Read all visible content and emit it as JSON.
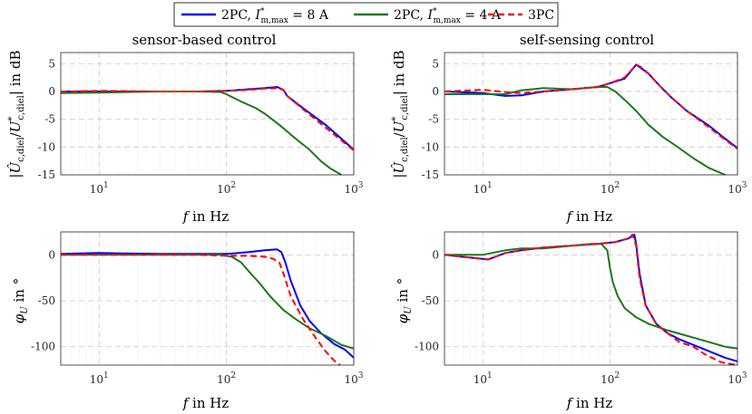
{
  "legend": {
    "entries": [
      {
        "name": "2PC, I*m,max = 8 A",
        "color": "#0000ff",
        "dash": "solid"
      },
      {
        "name": "2PC, I*m,max = 4 A",
        "color": "#1a7a1a",
        "dash": "solid"
      },
      {
        "name": "3PC",
        "color": "#ff0000",
        "dash": "dashed"
      }
    ]
  },
  "chart_data": [
    {
      "id": "mag-sensor",
      "type": "line",
      "title": "sensor-based control",
      "xlabel": "f in Hz",
      "ylabel": "|Ûc,diel / U*c,diel| in dB",
      "xscale": "log",
      "xlim": [
        5,
        1000
      ],
      "ylim": [
        -15,
        7
      ],
      "xticks": [
        10,
        100,
        1000
      ],
      "xticklabels": [
        "10^1",
        "10^2",
        "10^3"
      ],
      "yticks": [
        5,
        0,
        -5,
        -10,
        -15
      ],
      "series": [
        {
          "name": "2PC, I*m,max = 8 A",
          "x": [
            5,
            10,
            30,
            60,
            100,
            150,
            200,
            250,
            280,
            300,
            400,
            600,
            800,
            1000
          ],
          "y": [
            0,
            0,
            0,
            0,
            0.1,
            0.4,
            0.6,
            0.8,
            0.3,
            -0.8,
            -3,
            -6,
            -8.5,
            -10.5
          ]
        },
        {
          "name": "2PC, I*m,max = 4 A",
          "x": [
            5,
            10,
            30,
            60,
            90,
            100,
            130,
            170,
            200,
            260,
            350,
            450,
            550,
            650,
            800
          ],
          "y": [
            -0.3,
            -0.2,
            0,
            0,
            -0.1,
            -0.5,
            -1.8,
            -3,
            -4,
            -6,
            -8.5,
            -10.5,
            -12.5,
            -13.8,
            -15
          ]
        },
        {
          "name": "3PC",
          "x": [
            5,
            10,
            30,
            60,
            100,
            150,
            200,
            250,
            280,
            300,
            400,
            600,
            800,
            1000
          ],
          "y": [
            0,
            0.1,
            0,
            0,
            0.1,
            0.3,
            0.5,
            0.6,
            0.3,
            -0.8,
            -3.2,
            -6.5,
            -8.8,
            -10.6
          ]
        }
      ]
    },
    {
      "id": "mag-self",
      "type": "line",
      "title": "self-sensing control",
      "xlabel": "f in Hz",
      "ylabel": "|Ûc,diel / U*c,diel| in dB",
      "xscale": "log",
      "xlim": [
        5,
        1000
      ],
      "ylim": [
        -15,
        7
      ],
      "xticks": [
        10,
        100,
        1000
      ],
      "xticklabels": [
        "10^1",
        "10^2",
        "10^3"
      ],
      "yticks": [
        5,
        0,
        -5,
        -10,
        -15
      ],
      "series": [
        {
          "name": "2PC, I*m,max = 8 A",
          "x": [
            5,
            10,
            15,
            20,
            30,
            50,
            80,
            100,
            130,
            160,
            175,
            200,
            250,
            300,
            400,
            600,
            800,
            1000
          ],
          "y": [
            0,
            -0.3,
            -0.8,
            -0.7,
            0,
            0.4,
            0.8,
            1.5,
            2.3,
            4.8,
            4.2,
            3.2,
            0.8,
            -1,
            -3.5,
            -6.2,
            -8.5,
            -10.2
          ]
        },
        {
          "name": "2PC, I*m,max = 4 A",
          "x": [
            5,
            10,
            15,
            20,
            30,
            50,
            80,
            95,
            110,
            130,
            160,
            200,
            260,
            330,
            450,
            600,
            800
          ],
          "y": [
            -0.5,
            -0.5,
            -0.5,
            0.2,
            0.6,
            0.4,
            0.8,
            0.8,
            0,
            -1.5,
            -3.5,
            -6,
            -8.2,
            -9.8,
            -12,
            -13.8,
            -15
          ]
        },
        {
          "name": "3PC",
          "x": [
            5,
            10,
            15,
            20,
            30,
            50,
            80,
            100,
            130,
            160,
            175,
            200,
            250,
            300,
            400,
            600,
            800,
            1000
          ],
          "y": [
            0,
            0.3,
            -0.1,
            -0.3,
            0,
            0.4,
            0.8,
            1.5,
            2.5,
            4.8,
            4.4,
            3.2,
            0.8,
            -1,
            -3.5,
            -6.5,
            -8.7,
            -10.3
          ]
        }
      ]
    },
    {
      "id": "phase-sensor",
      "type": "line",
      "title": "",
      "xlabel": "f in Hz",
      "ylabel": "φU in °",
      "xscale": "log",
      "xlim": [
        5,
        1000
      ],
      "ylim": [
        -120,
        25
      ],
      "xticks": [
        10,
        100,
        1000
      ],
      "xticklabels": [
        "10^1",
        "10^2",
        "10^3"
      ],
      "yticks": [
        0,
        -50,
        -100
      ],
      "series": [
        {
          "name": "2PC, I*m,max = 8 A",
          "x": [
            5,
            10,
            30,
            60,
            100,
            150,
            200,
            250,
            270,
            290,
            320,
            380,
            450,
            550,
            700,
            850,
            1000
          ],
          "y": [
            1,
            2,
            1,
            1,
            1,
            3,
            5,
            6,
            3,
            -8,
            -28,
            -55,
            -72,
            -85,
            -97,
            -103,
            -112
          ]
        },
        {
          "name": "2PC, I*m,max = 4 A",
          "x": [
            5,
            10,
            30,
            60,
            90,
            110,
            130,
            150,
            180,
            220,
            280,
            350,
            450,
            600,
            800,
            1000
          ],
          "y": [
            0,
            0,
            0,
            0,
            0,
            -2,
            -8,
            -18,
            -30,
            -45,
            -60,
            -70,
            -80,
            -88,
            -98,
            -102
          ]
        },
        {
          "name": "3PC",
          "x": [
            5,
            10,
            30,
            60,
            100,
            150,
            200,
            230,
            260,
            280,
            320,
            400,
            500,
            600,
            700,
            780
          ],
          "y": [
            0,
            0,
            0,
            0,
            -1,
            -1,
            -2,
            -4,
            -8,
            -20,
            -45,
            -70,
            -90,
            -105,
            -115,
            -120
          ]
        }
      ]
    },
    {
      "id": "phase-self",
      "type": "line",
      "title": "",
      "xlabel": "f in Hz",
      "ylabel": "φU in °",
      "xscale": "log",
      "xlim": [
        5,
        1000
      ],
      "ylim": [
        -120,
        25
      ],
      "xticks": [
        10,
        100,
        1000
      ],
      "xticklabels": [
        "10^1",
        "10^2",
        "10^3"
      ],
      "yticks": [
        0,
        -50,
        -100
      ],
      "series": [
        {
          "name": "2PC, I*m,max = 8 A",
          "x": [
            5,
            8,
            11,
            15,
            20,
            30,
            50,
            80,
            110,
            140,
            155,
            160,
            170,
            190,
            230,
            280,
            350,
            450,
            600,
            800,
            1000
          ],
          "y": [
            0,
            -3,
            -5,
            2,
            5,
            8,
            10,
            12,
            14,
            18,
            22,
            12,
            -20,
            -55,
            -75,
            -85,
            -92,
            -98,
            -105,
            -112,
            -116
          ]
        },
        {
          "name": "2PC, I*m,max = 4 A",
          "x": [
            5,
            10,
            15,
            20,
            30,
            50,
            70,
            85,
            95,
            100,
            105,
            115,
            130,
            160,
            200,
            280,
            400,
            600,
            800,
            1000
          ],
          "y": [
            0,
            0,
            5,
            7,
            7,
            10,
            12,
            12,
            5,
            -15,
            -30,
            -45,
            -58,
            -68,
            -75,
            -82,
            -88,
            -95,
            -100,
            -102
          ]
        },
        {
          "name": "3PC",
          "x": [
            5,
            8,
            11,
            15,
            20,
            30,
            50,
            80,
            110,
            140,
            150,
            160,
            170,
            190,
            230,
            280,
            350,
            450,
            550,
            650,
            750,
            900,
            1000
          ],
          "y": [
            0,
            -3,
            -5,
            2,
            5,
            8,
            10,
            12,
            14,
            18,
            22,
            10,
            -25,
            -55,
            -75,
            -85,
            -95,
            -100,
            -108,
            -113,
            -117,
            -119,
            -120
          ]
        }
      ]
    }
  ]
}
